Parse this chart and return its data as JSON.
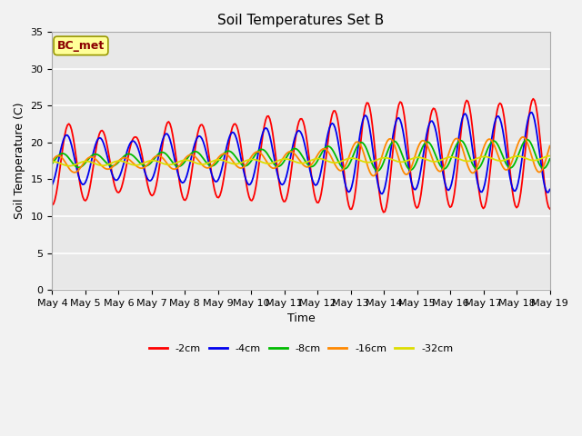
{
  "title": "Soil Temperatures Set B",
  "xlabel": "Time",
  "ylabel": "Soil Temperature (C)",
  "ylim": [
    0,
    35
  ],
  "x_tick_labels": [
    "May 4",
    "May 5",
    "May 6",
    "May 7",
    "May 8",
    "May 9",
    "May 10",
    "May 11",
    "May 12",
    "May 13",
    "May 14",
    "May 15",
    "May 16",
    "May 17",
    "May 18",
    "May 19"
  ],
  "annotation": "BC_met",
  "annotation_color": "#8B0000",
  "annotation_bg": "#FFFF99",
  "annotation_edge": "#999900",
  "colors": {
    "-2cm": "#FF0000",
    "-4cm": "#0000EE",
    "-8cm": "#00BB00",
    "-16cm": "#FF8800",
    "-32cm": "#DDDD00"
  },
  "line_width": 1.3,
  "bg_color": "#E8E8E8",
  "fig_bg": "#F2F2F2",
  "title_fontsize": 11,
  "axis_label_fontsize": 9,
  "tick_fontsize": 8,
  "annotation_fontsize": 9,
  "legend_fontsize": 8,
  "yticks": [
    0,
    5,
    10,
    15,
    20,
    25,
    30,
    35
  ]
}
